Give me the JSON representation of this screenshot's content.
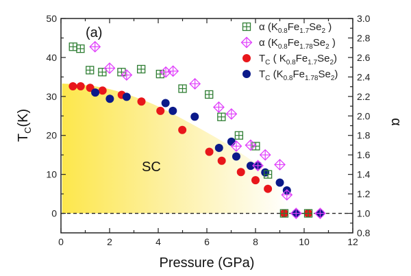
{
  "chart_data": {
    "type": "scatter",
    "panel_label": "(a)",
    "region_label": "SC",
    "xlabel": "Pressure (GPa)",
    "ylabel_left": {
      "main": "T",
      "sub": "C",
      "rest": "(K)"
    },
    "ylabel_right": "α",
    "xlim": [
      0,
      12
    ],
    "ylim_left": [
      -5,
      50
    ],
    "ylim_right": [
      0.8,
      3.0
    ],
    "x_ticks": [
      0,
      2,
      4,
      6,
      8,
      10,
      12
    ],
    "x_tick_labels": [
      "0",
      "2",
      "4",
      "6",
      "8",
      "10",
      "12"
    ],
    "y_left_ticks": [
      0,
      10,
      20,
      30,
      40,
      50
    ],
    "y_left_tick_labels": [
      "0",
      "10",
      "20",
      "30",
      "40",
      "50"
    ],
    "y_right_ticks": [
      0.8,
      1.0,
      1.2,
      1.4,
      1.6,
      1.8,
      2.0,
      2.2,
      2.4,
      2.6,
      2.8,
      3.0
    ],
    "y_right_tick_labels": [
      "0.8",
      "1.0",
      "1.2",
      "1.4",
      "1.6",
      "1.8",
      "2.0",
      "2.2",
      "2.4",
      "2.6",
      "2.8",
      "3.0"
    ],
    "reference_line": {
      "axis": "left",
      "y": 0,
      "style": "dashed"
    },
    "legend_position": "top-right",
    "grid": false,
    "sc_region_boundary": [
      [
        0.05,
        33.3
      ],
      [
        1.0,
        33.0
      ],
      [
        2.0,
        32.0
      ],
      [
        3.1,
        29.8
      ],
      [
        4.0,
        27.5
      ],
      [
        4.8,
        24.9
      ],
      [
        5.8,
        21.5
      ],
      [
        6.8,
        17.9
      ],
      [
        7.7,
        14.2
      ],
      [
        8.5,
        10.9
      ],
      [
        9.0,
        6.5
      ],
      [
        9.4,
        0
      ]
    ],
    "series": [
      {
        "name": "α (K0.8Fe1.7Se2)",
        "legend": {
          "pre": "α  (K",
          "s1": "0.8",
          "m1": "Fe",
          "s2": "1.7",
          "m2": "Se",
          "s3": "2",
          "post": " )"
        },
        "axis": "right",
        "marker": "square-cross",
        "color": "#2e7d32",
        "x": [
          0.5,
          0.8,
          1.19,
          1.7,
          2.49,
          3.3,
          4.08,
          5.0,
          6.09,
          6.6,
          7.32,
          8.01,
          8.51,
          9.18,
          10.17
        ],
        "y": [
          2.71,
          2.69,
          2.47,
          2.45,
          2.45,
          2.48,
          2.43,
          2.28,
          2.22,
          1.99,
          1.8,
          1.69,
          1.4,
          1.0,
          1.0
        ]
      },
      {
        "name": "α (K0.8Fe1.78Se2)",
        "legend": {
          "pre": "α  (K",
          "s1": "0.8",
          "m1": "Fe",
          "s2": "1.78",
          "m2": "Se",
          "s3": "2",
          "post": " )"
        },
        "axis": "right",
        "marker": "diamond-cross",
        "color": "#e040fb",
        "x": [
          1.4,
          2.0,
          2.7,
          4.31,
          4.61,
          5.51,
          6.49,
          7.01,
          7.21,
          7.8,
          8.1,
          8.4,
          9.0,
          9.29,
          9.67,
          10.66
        ],
        "y": [
          2.71,
          2.49,
          2.42,
          2.45,
          2.46,
          2.33,
          2.09,
          2.02,
          1.69,
          1.7,
          1.49,
          1.6,
          1.5,
          1.19,
          1.0,
          1.0
        ]
      },
      {
        "name": "TC (K0.8Fe1.7Se2)",
        "legend": {
          "pre": "T",
          "sub0": "C",
          "mid": " ( K",
          "s1": "0.8",
          "m1": "Fe",
          "s2": "1.7",
          "m2": "Se",
          "s3": "2",
          "post": ")"
        },
        "axis": "left",
        "marker": "circle",
        "color": "#e8161b",
        "x": [
          0.49,
          0.81,
          1.2,
          1.71,
          2.5,
          3.31,
          4.09,
          4.99,
          6.1,
          6.61,
          7.4,
          8.0,
          8.51,
          9.18,
          10.17
        ],
        "y": [
          32.6,
          32.6,
          32.2,
          31.5,
          30.4,
          28.7,
          26.3,
          21.4,
          15.8,
          13.5,
          10.6,
          8.5,
          6.3,
          0,
          0
        ]
      },
      {
        "name": "TC (K0.8Fe1.78Se2)",
        "legend": {
          "pre": "T",
          "sub0": "C",
          "mid": " (K",
          "s1": "0.8",
          "m1": "Fe",
          "s2": "1.78",
          "m2": "Se",
          "s3": "2",
          "post": ")"
        },
        "axis": "left",
        "marker": "circle",
        "color": "#0b1a8a",
        "x": [
          1.41,
          2.01,
          2.7,
          4.3,
          4.6,
          5.5,
          6.5,
          7.01,
          7.21,
          7.8,
          8.1,
          8.4,
          9.0,
          9.29,
          9.67,
          10.66
        ],
        "y": [
          31.0,
          29.4,
          29.9,
          28.3,
          26.3,
          24.8,
          16.8,
          18.4,
          14.6,
          12.2,
          12.3,
          10.5,
          7.9,
          5.9,
          0,
          0
        ]
      }
    ],
    "colors": {
      "sc_fill_start": "#fde74c",
      "sc_fill_end": "#ffffff",
      "axis": "#222222"
    }
  }
}
